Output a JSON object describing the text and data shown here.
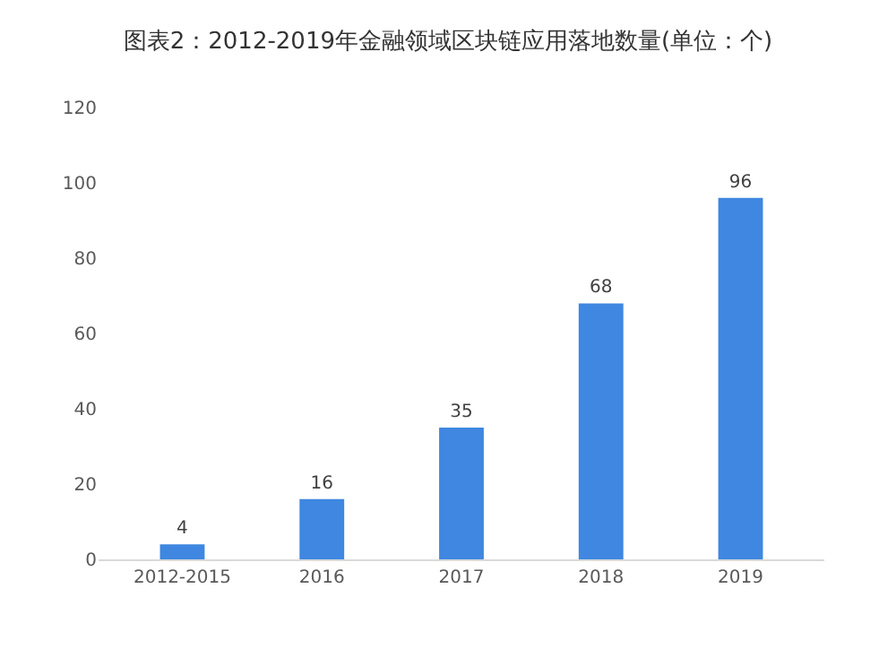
{
  "chart_data": {
    "type": "bar",
    "title": "图表2：2012-2019年金融领域区块链应用落地数量(单位：个)",
    "categories": [
      "2012-2015",
      "2016",
      "2017",
      "2018",
      "2019"
    ],
    "values": [
      4,
      16,
      35,
      68,
      96
    ],
    "color": "#3f87e0",
    "ylim": [
      0,
      120
    ],
    "yticks": [
      0,
      20,
      40,
      60,
      80,
      100,
      120
    ],
    "grid": false,
    "data_labels": true
  }
}
